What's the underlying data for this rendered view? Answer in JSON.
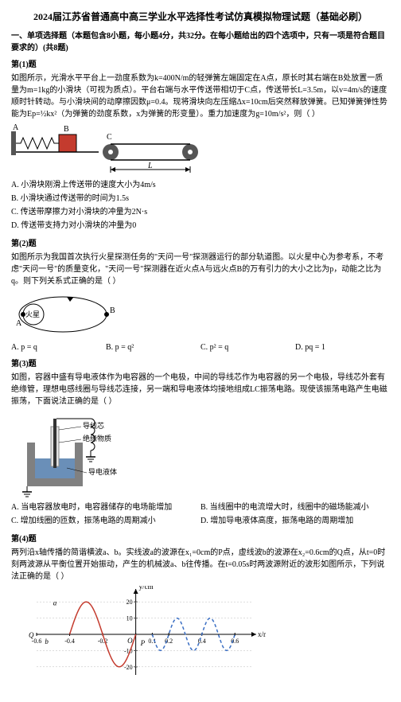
{
  "title": "2024届江苏省普通高中高三学业水平选择性考试仿真模拟物理试题（基础必刷）",
  "section1": {
    "heading": "一、单项选择题（本题包含8小题，每小题4分，共32分。在每小题给出的四个选项中，只有一项是符合题目要求的）(共8题)",
    "q1": {
      "label": "第(1)题",
      "text": "如图所示，光滑水平平台上一劲度系数为k=400N/m的轻弹簧左端固定在A点，原长时其右端在B处放置一质量为m=1kg的小滑块（可视为质点）。平台右端与水平传送带相切于C点，传送带长L=3.5m，以v=4m/s的速度顺时针转动。与小滑块间的动摩擦因数μ=0.4。现将滑块向左压缩Δx=10cm后突然释放弹簧。已知弹簧弹性势能为Ep=½kx²（为弹簧的劲度系数，x为弹簧的形变量）。重力加速度为g=10m/s²，则（  ）",
      "options": {
        "A": "A. 小滑块刚滑上传送带的速度大小为4m/s",
        "B": "B. 小滑块通过传送带的时间为1.5s",
        "C": "C. 传送带摩擦力对小滑块的冲量为2N·s",
        "D": "D. 传送带支持力对小滑块的冲量为0"
      },
      "fig": {
        "wall_color": "#555555",
        "block_color": "#c43b2e",
        "belt_color": "#cccccc",
        "roller_color": "#555555",
        "line_color": "#000000",
        "labels": {
          "A": "A",
          "B": "B",
          "C": "C",
          "L": "L"
        }
      }
    },
    "q2": {
      "label": "第(2)题",
      "text": "如图所示为我国首次执行火星探测任务的\"天问一号\"探测器运行的部分轨道图。以火星中心为参考系，不考虑\"天问一号\"的质量变化，\"天问一号\"探测器在近火点A与远火点B的万有引力的大小之比为p，动能之比为q。则下列关系式正确的是（   ）",
      "options": {
        "A": "A.  p = q",
        "B": "B.  p = q²",
        "C": "C.  p² = q",
        "D": "D.  pq = 1"
      },
      "fig": {
        "mars_label": "火星",
        "fill_color": "#ffffff",
        "line_color": "#000000",
        "labels": {
          "A": "A",
          "B": "B"
        }
      }
    },
    "q3": {
      "label": "第(3)题",
      "text": "如图，容器中盛有导电液体作为电容器的一个电极，中间的导线芯作为电容器的另一个电极，导线芯外套有绝缘管，理想电感线圈与导线芯连接，另一端和导电液体均接地组成LC振荡电路。现使该振荡电路产生电磁振荡，下面说法正确的是（   ）",
      "options": {
        "A": "A. 当电容器放电时，电容器储存的电场能增加",
        "B": "B. 当线圈中的电流增大时，线圈中的磁场能减小",
        "C": "C. 增加线圈的匝数，振荡电路的周期减小",
        "D": "D. 增加导电液体高度，振荡电路的周期增加"
      },
      "fig": {
        "container_color": "#808080",
        "liquid_color": "#6a8fb8",
        "insulator_color": "#e0e0e0",
        "wire_color": "#333333",
        "ground_color": "#000000",
        "labels": {
          "core": "导线芯",
          "insulator": "绝缘物质",
          "liquid": "导电液体"
        }
      }
    },
    "q4": {
      "label": "第(4)题",
      "text": "两列沿x轴传播的简谐横波a、b。实线波a的波源在x₁=0cm的P点，虚线波b的波源在x₂=0.6cm的Q点，从t=0时刻两波源从平衡位置开始振动，产生的机械波a、b往传播。在t=0.05s时两波源附近的波形如图所示，下列说法正确的是（   ）",
      "fig": {
        "type": "wave",
        "xlim": [
          -0.6,
          0.7
        ],
        "ylim": [
          -25,
          25
        ],
        "xticks": [
          -0.6,
          -0.4,
          -0.2,
          0,
          0.1,
          0.2,
          0.4,
          0.6
        ],
        "yticks": [
          -20,
          -10,
          10,
          20
        ],
        "xlabel": "x/m",
        "ylabel": "y/cm",
        "solid_color": "#c43b2e",
        "dashed_color": "#3b6fc4",
        "axis_color": "#000000",
        "bg_color": "#ffffff",
        "labels": {
          "O": "O",
          "P": "P",
          "Q": "Q",
          "a": "a",
          "b": "b"
        },
        "wave_a": {
          "amplitude": 20,
          "wavelength": 0.4,
          "xrange": [
            -0.4,
            0
          ]
        },
        "wave_b": {
          "amplitude": 10,
          "wavelength": 0.2,
          "xrange": [
            0.1,
            0.6
          ]
        }
      }
    }
  }
}
